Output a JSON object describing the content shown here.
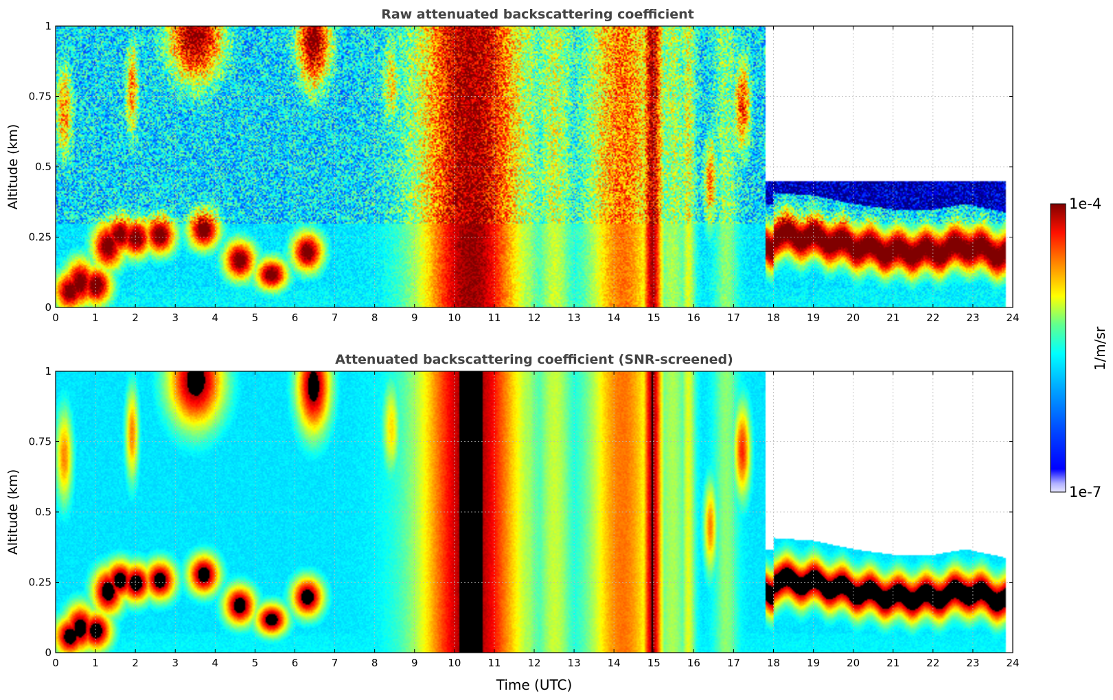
{
  "chart_data": [
    {
      "type": "heatmap",
      "title": "Raw attenuated backscattering coefficient",
      "xlabel": "",
      "ylabel": "Altitude (km)",
      "xlim": [
        0,
        24
      ],
      "ylim": [
        0,
        1
      ],
      "xticks": [
        "0",
        "1",
        "2",
        "3",
        "4",
        "5",
        "6",
        "7",
        "8",
        "9",
        "10",
        "11",
        "12",
        "13",
        "14",
        "15",
        "16",
        "17",
        "18",
        "19",
        "20",
        "21",
        "22",
        "23",
        "24"
      ],
      "yticks": [
        "0",
        "0.25",
        "0.5",
        "0.75",
        "1"
      ],
      "grid": true,
      "screened": false
    },
    {
      "type": "heatmap",
      "title": "Attenuated backscattering coefficient (SNR-screened)",
      "xlabel": "Time (UTC)",
      "ylabel": "Altitude (km)",
      "xlim": [
        0,
        24
      ],
      "ylim": [
        0,
        1
      ],
      "xticks": [
        "0",
        "1",
        "2",
        "3",
        "4",
        "5",
        "6",
        "7",
        "8",
        "9",
        "10",
        "11",
        "12",
        "13",
        "14",
        "15",
        "16",
        "17",
        "18",
        "19",
        "20",
        "21",
        "22",
        "23",
        "24"
      ],
      "yticks": [
        "0",
        "0.25",
        "0.5",
        "0.75",
        "1"
      ],
      "grid": true,
      "screened": true
    }
  ],
  "colorbar": {
    "label": "1/m/sr",
    "max_label": "1e-4",
    "min_label": "1e-7",
    "scale": "log",
    "colormap": "jet"
  },
  "features": {
    "nocturnal_layer": [
      [
        0.35,
        0.06,
        0.05
      ],
      [
        0.6,
        0.09,
        0.06
      ],
      [
        1.0,
        0.08,
        0.05
      ],
      [
        1.3,
        0.22,
        0.06
      ],
      [
        1.6,
        0.26,
        0.05
      ],
      [
        2.0,
        0.25,
        0.05
      ],
      [
        2.6,
        0.26,
        0.05
      ],
      [
        3.7,
        0.28,
        0.05
      ],
      [
        4.6,
        0.17,
        0.05
      ],
      [
        5.4,
        0.12,
        0.04
      ],
      [
        6.3,
        0.2,
        0.05
      ]
    ],
    "day_columns": [
      [
        8.85,
        0.07,
        0.2
      ],
      [
        9.55,
        0.18,
        0.45
      ],
      [
        10.4,
        0.9,
        1.0
      ],
      [
        11.8,
        0.2,
        0.35
      ],
      [
        12.5,
        0.3,
        0.4
      ],
      [
        14.2,
        0.6,
        0.75
      ],
      [
        14.95,
        0.18,
        0.95
      ],
      [
        15.45,
        0.25,
        0.35
      ],
      [
        15.85,
        0.12,
        0.45
      ],
      [
        16.8,
        0.2,
        0.3
      ]
    ],
    "clouds": [
      [
        17.2,
        0.72,
        0.15,
        0.6
      ],
      [
        16.4,
        0.45,
        0.12,
        0.5
      ],
      [
        15.0,
        0.85,
        0.15,
        0.7
      ],
      [
        6.45,
        0.95,
        0.3,
        0.8
      ],
      [
        3.5,
        0.97,
        0.5,
        0.8
      ],
      [
        0.2,
        0.7,
        0.15,
        0.5
      ],
      [
        1.9,
        0.78,
        0.12,
        0.5
      ],
      [
        8.4,
        0.8,
        0.15,
        0.4
      ]
    ],
    "evening_layer": [
      [
        18.0,
        0.26,
        0.06
      ],
      [
        19.0,
        0.25,
        0.06
      ],
      [
        20.0,
        0.22,
        0.05
      ],
      [
        21.0,
        0.2,
        0.05
      ],
      [
        22.0,
        0.2,
        0.05
      ],
      [
        22.8,
        0.22,
        0.05
      ],
      [
        23.8,
        0.19,
        0.05
      ]
    ]
  }
}
